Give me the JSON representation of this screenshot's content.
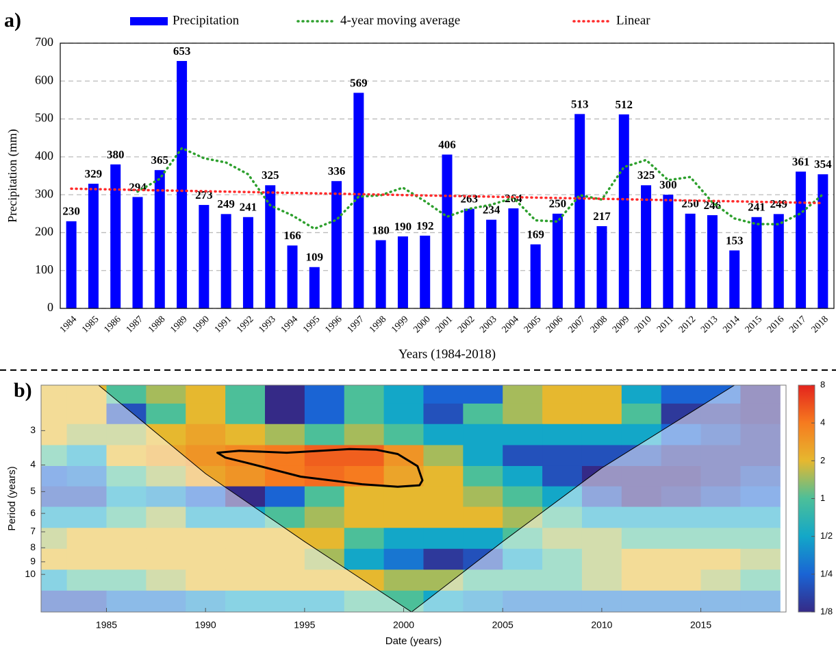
{
  "chart_data": [
    {
      "type": "bar",
      "panel_label": "a)",
      "x_label": "Years (1984-2018)",
      "y_label": "Precipitation (mm)",
      "categories": [
        "1984",
        "1985",
        "1986",
        "1987",
        "1988",
        "1989",
        "1990",
        "1991",
        "1992",
        "1993",
        "1994",
        "1995",
        "1996",
        "1997",
        "1998",
        "1999",
        "2000",
        "2001",
        "2002",
        "2003",
        "2004",
        "2005",
        "2006",
        "2007",
        "2008",
        "2009",
        "2010",
        "2011",
        "2012",
        "2013",
        "2014",
        "2015",
        "2016",
        "2017",
        "2018"
      ],
      "series": [
        {
          "name": "Precipitation",
          "color": "#0000ff",
          "values": [
            230,
            329,
            380,
            294,
            365,
            653,
            273,
            249,
            241,
            325,
            166,
            109,
            336,
            569,
            180,
            190,
            192,
            406,
            263,
            234,
            264,
            169,
            250,
            513,
            217,
            512,
            325,
            300,
            250,
            246,
            153,
            241,
            249,
            361,
            354
          ]
        },
        {
          "name": "4-year moving average",
          "type": "line",
          "color": "#2ea02e",
          "values": [
            null,
            null,
            null,
            308.25,
            342,
            423,
            396.25,
            385,
            354,
            272,
            245.25,
            210.25,
            234,
            295,
            298.5,
            318.75,
            282.75,
            242,
            262.75,
            273.75,
            291.75,
            232.5,
            229.25,
            299,
            287.25,
            373,
            391.75,
            338.5,
            346.75,
            280.25,
            237.25,
            222.5,
            222.25,
            251,
            301.25
          ]
        },
        {
          "name": "Linear",
          "type": "line",
          "color": "#ff2a2a",
          "values": [
            316,
            314.9,
            313.8,
            312.6,
            311.5,
            310.4,
            309.3,
            308.2,
            307.1,
            305.9,
            304.8,
            303.7,
            302.6,
            301.5,
            300.4,
            299.2,
            298.1,
            297,
            295.9,
            294.8,
            293.6,
            292.5,
            291.4,
            290.3,
            289.2,
            288.1,
            286.9,
            285.8,
            284.7,
            283.6,
            282.5,
            281.4,
            280.2,
            279.1,
            278
          ]
        }
      ],
      "ylim": [
        0,
        700
      ],
      "yticks": [
        0,
        100,
        200,
        300,
        400,
        500,
        600,
        700
      ],
      "grid": true,
      "legend": "top"
    },
    {
      "type": "heatmap",
      "panel_label": "b)",
      "x_label": "Date (years)",
      "y_label": "Period (years)",
      "x": [
        1982,
        1984,
        1986,
        1988,
        1990,
        1992,
        1994,
        1996,
        1998,
        2000,
        2002,
        2004,
        2006,
        2008,
        2010,
        2012,
        2014,
        2016,
        2018
      ],
      "periods": [
        2.2,
        2.6,
        3.1,
        3.7,
        4.4,
        5.2,
        6.2,
        7.4,
        8.8,
        10.5,
        12.5
      ],
      "z": [
        [
          2,
          2,
          1,
          1.5,
          2,
          1,
          0.125,
          0.25,
          1,
          0.5,
          0.25,
          0.25,
          1.5,
          2,
          2,
          0.5,
          0.25,
          0.25,
          0.125
        ],
        [
          2,
          2,
          0.2,
          1,
          2,
          1,
          0.125,
          0.25,
          1,
          0.5,
          0.2,
          1,
          1.5,
          2,
          2,
          1,
          0.15,
          0.15,
          0.125
        ],
        [
          2,
          1.5,
          1.5,
          2,
          2.5,
          2,
          1.5,
          1,
          1.5,
          1,
          0.5,
          0.5,
          0.5,
          0.5,
          0.5,
          0.5,
          0.25,
          0.2,
          0.15
        ],
        [
          1,
          0.5,
          2,
          2.5,
          3,
          3.5,
          4,
          5,
          5,
          3,
          1.5,
          0.5,
          0.2,
          0.2,
          0.2,
          0.2,
          0.15,
          0.15,
          0.15
        ],
        [
          0.25,
          0.3,
          1,
          1.5,
          2.5,
          3,
          4,
          4.5,
          4,
          2.5,
          2,
          1,
          0.5,
          0.2,
          0.125,
          0.125,
          0.125,
          0.15,
          0.2
        ],
        [
          0.2,
          0.2,
          0.5,
          0.4,
          0.25,
          0.125,
          0.25,
          1,
          2,
          2,
          2,
          1.5,
          1,
          0.5,
          0.2,
          0.125,
          0.15,
          0.2,
          0.25
        ],
        [
          0.5,
          0.5,
          1,
          1.5,
          0.5,
          0.5,
          1,
          1.5,
          2,
          2,
          2,
          2,
          1.5,
          1,
          0.5,
          0.5,
          0.5,
          0.5,
          0.5
        ],
        [
          1.5,
          2,
          2,
          2,
          2,
          2,
          2,
          2,
          1,
          0.5,
          0.5,
          0.5,
          1,
          1.5,
          1.5,
          1,
          1,
          1,
          1
        ],
        [
          2,
          2,
          2,
          2,
          2,
          2,
          2,
          1.5,
          0.5,
          0.3,
          0.15,
          0.2,
          0.5,
          1,
          1.5,
          2,
          2,
          2,
          1.5
        ],
        [
          0.5,
          1,
          1,
          1.5,
          2,
          2,
          2,
          2,
          2,
          1.5,
          1.5,
          1,
          1,
          1,
          1.5,
          2,
          2,
          1.5,
          1
        ],
        [
          0.2,
          0.2,
          0.3,
          0.3,
          0.4,
          0.5,
          0.5,
          0.5,
          1,
          1,
          0.5,
          0.4,
          0.3,
          0.3,
          0.3,
          0.3,
          0.3,
          0.3,
          0.3
        ]
      ],
      "xlim": [
        1981.7,
        2019.3
      ],
      "xticks": [
        1985,
        1990,
        1995,
        2000,
        2005,
        2010,
        2015
      ],
      "ylim": [
        2.05,
        13.7
      ],
      "yticks": [
        3,
        4,
        5,
        6,
        7,
        8,
        9,
        10
      ],
      "log_y": true,
      "y_inverted": true,
      "colorbar": {
        "ticks": [
          {
            "value": 0.125,
            "label": "1/8"
          },
          {
            "value": 0.25,
            "label": "1/4"
          },
          {
            "value": 0.5,
            "label": "1/2"
          },
          1,
          2,
          4,
          8
        ],
        "colors": [
          "#352a87",
          "#1a64d4",
          "#13a7c8",
          "#4cbf99",
          "#e6b82f",
          "#f67b1f",
          "#e3231d"
        ]
      },
      "cone": {
        "x": [
          1984.6,
          1990,
          1995,
          2000.4,
          2005,
          2010,
          2016.7
        ],
        "period": [
          2.05,
          4.3,
          7.6,
          13.7,
          7.6,
          4.1,
          2.05
        ]
      },
      "contour": {
        "x": [
          1990.6,
          1991.7,
          1994.1,
          1997.3,
          1998.6,
          1999.7,
          2000.7,
          2000.95,
          2000.8,
          1999.7,
          1997.9,
          1994.8,
          1992.1,
          1991.0
        ],
        "period": [
          3.61,
          3.55,
          3.61,
          3.5,
          3.52,
          3.65,
          4.04,
          4.55,
          4.74,
          4.8,
          4.7,
          4.41,
          3.93,
          3.76
        ]
      }
    }
  ]
}
